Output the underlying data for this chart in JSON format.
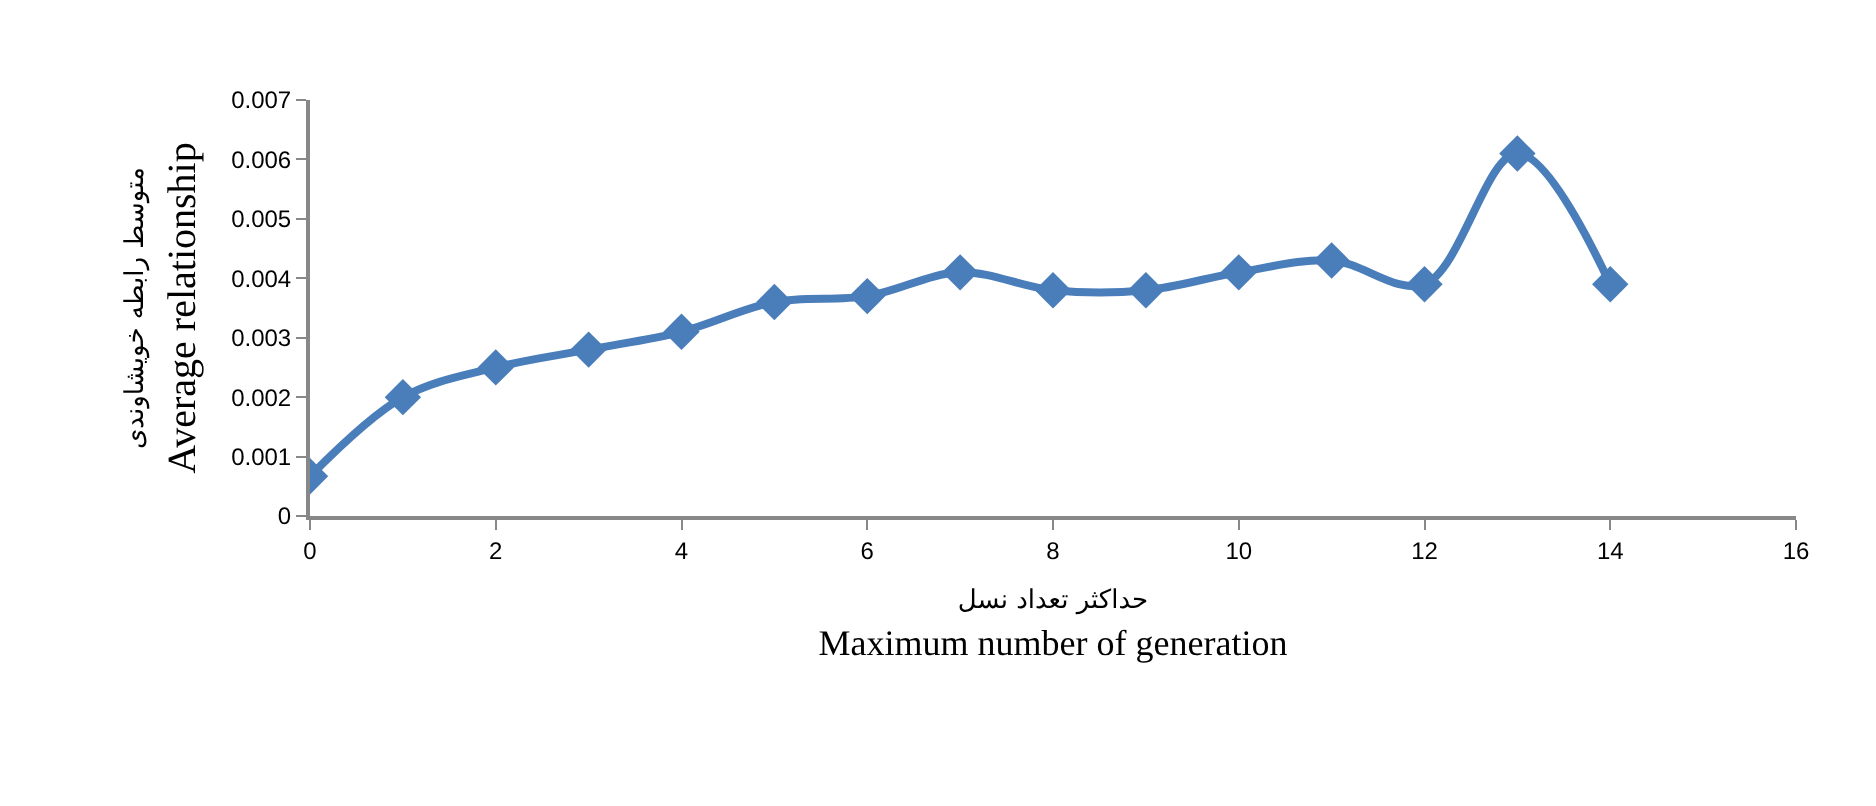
{
  "chart_data": {
    "type": "line",
    "xlabel": "حداکثر تعداد نسل\nMaximum number of generation",
    "ylabel": "متوسط رابطه خویشاوندی\nAverage relationship",
    "x": [
      0,
      1,
      2,
      3,
      4,
      5,
      6,
      7,
      8,
      9,
      10,
      11,
      12,
      13,
      14
    ],
    "series": [
      {
        "color": "#4a7ebb",
        "values": [
          0.00067,
          0.002,
          0.0025,
          0.0028,
          0.0031,
          0.0036,
          0.0037,
          0.0041,
          0.0038,
          0.0038,
          0.0041,
          0.0043,
          0.0039,
          0.0061,
          0.0039
        ]
      }
    ],
    "xlim": [
      0,
      16
    ],
    "xticks": [
      0,
      2,
      4,
      6,
      8,
      10,
      12,
      14,
      16
    ],
    "ylim": [
      0,
      0.007
    ],
    "yticks": [
      {
        "value": 0,
        "label": "0"
      },
      0.001,
      0.002,
      0.003,
      0.004,
      0.005,
      0.006,
      0.007
    ],
    "marker": "diamond",
    "line_style": "solid"
  }
}
